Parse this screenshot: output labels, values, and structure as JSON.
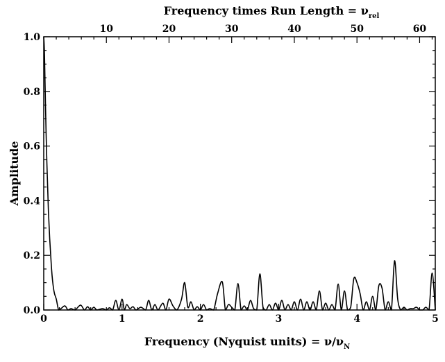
{
  "chart_data": {
    "type": "line",
    "title": "",
    "xlabel": "Frequency (Nyquist units) = ν/ν",
    "xlabel_sub": "N",
    "x2label": "Frequency times Run Length = ν",
    "x2label_sub": "rel",
    "ylabel": "Amplitude",
    "xlim": [
      0,
      5
    ],
    "ylim": [
      0,
      1
    ],
    "x2lim": [
      0,
      62.5
    ],
    "grid": false,
    "x_ticks": [
      0,
      1,
      2,
      3,
      4,
      5
    ],
    "x_tick_labels": [
      "0",
      "1",
      "2",
      "3",
      "4",
      "5"
    ],
    "y_ticks": [
      0,
      0.2,
      0.4,
      0.6,
      0.8,
      1.0
    ],
    "y_tick_labels": [
      "0.0",
      "0.2",
      "0.4",
      "0.6",
      "0.8",
      "1.0"
    ],
    "x2_ticks": [
      10,
      20,
      30,
      40,
      50,
      60
    ],
    "x2_tick_labels": [
      "10",
      "20",
      "30",
      "40",
      "50",
      "60"
    ],
    "series": [
      {
        "x": [
          0,
          0.01,
          0.03,
          0.06,
          0.1,
          0.13,
          0.16,
          0.19,
          0.22,
          0.27,
          0.31,
          0.35,
          0.4,
          0.47,
          0.52,
          0.56,
          0.6,
          0.64,
          0.68,
          0.75,
          0.8,
          0.84,
          0.88,
          0.92,
          0.96,
          1.0,
          1.03,
          1.06,
          1.1,
          1.14,
          1.18,
          1.24,
          1.3,
          1.34,
          1.38,
          1.42,
          1.46,
          1.52,
          1.56,
          1.6,
          1.65,
          1.7,
          1.76,
          1.8,
          1.84,
          1.88,
          1.92,
          1.96,
          2.0,
          2.04,
          2.08,
          2.12,
          2.17,
          2.22,
          2.28,
          2.32,
          2.36,
          2.4,
          2.44,
          2.48,
          2.52,
          2.56,
          2.6,
          2.64,
          2.68,
          2.72,
          2.76,
          2.8,
          2.84,
          2.88,
          2.92,
          2.96,
          3.0,
          3.04,
          3.08,
          3.12,
          3.16,
          3.2,
          3.24,
          3.28,
          3.32,
          3.36,
          3.4,
          3.44,
          3.48,
          3.52,
          3.56,
          3.6,
          3.64,
          3.68,
          3.72,
          3.76,
          3.8,
          3.84,
          3.88,
          3.92,
          3.96,
          4.0,
          4.04,
          4.08,
          4.12,
          4.16,
          4.2,
          4.24,
          4.28,
          4.32,
          4.36,
          4.4,
          4.44,
          4.48,
          4.52,
          4.56,
          4.6,
          4.64,
          4.68,
          4.72,
          4.76,
          4.8,
          4.84,
          4.88,
          4.92,
          4.96,
          5.0
        ],
        "y": [
          1.0,
          0.93,
          0.65,
          0.36,
          0.15,
          0.07,
          0.04,
          0.0,
          0.005,
          0.015,
          0.0,
          0.005,
          0.0,
          0.018,
          0.0,
          0.012,
          0.0,
          0.01,
          0.0,
          0.005,
          0.0,
          0.008,
          0.0,
          0.035,
          0.0,
          0.04,
          0.0,
          0.02,
          0.005,
          0.012,
          0.0,
          0.01,
          0.0,
          0.035,
          0.0,
          0.02,
          0.0,
          0.025,
          0.0,
          0.04,
          0.015,
          0.0,
          0.04,
          0.1,
          0.01,
          0.03,
          0.0,
          0.012,
          0.0,
          0.02,
          0.0,
          0.005,
          0.0,
          0.06,
          0.103,
          0.0,
          0.02,
          0.01,
          0.0,
          0.097,
          0.0,
          0.015,
          0.0,
          0.035,
          0.005,
          0.0,
          0.132,
          0.01,
          0.0,
          0.02,
          0.0,
          0.025,
          0.0,
          0.035,
          0.0,
          0.02,
          0.0,
          0.03,
          0.0,
          0.04,
          0.0,
          0.03,
          0.0,
          0.03,
          0.0,
          0.07,
          0.0,
          0.025,
          0.0,
          0.02,
          0.0,
          0.095,
          0.0,
          0.07,
          0.0,
          0.01,
          0.115,
          0.1,
          0.06,
          0.0,
          0.03,
          0.0,
          0.05,
          0.0,
          0.09,
          0.08,
          0.0,
          0.03,
          0.0,
          0.18,
          0.04,
          0.0,
          0.01,
          0.0,
          0.005,
          0.005,
          0.01,
          0.0,
          0.0,
          0.01,
          0.0,
          0.135,
          0.0
        ]
      }
    ]
  }
}
